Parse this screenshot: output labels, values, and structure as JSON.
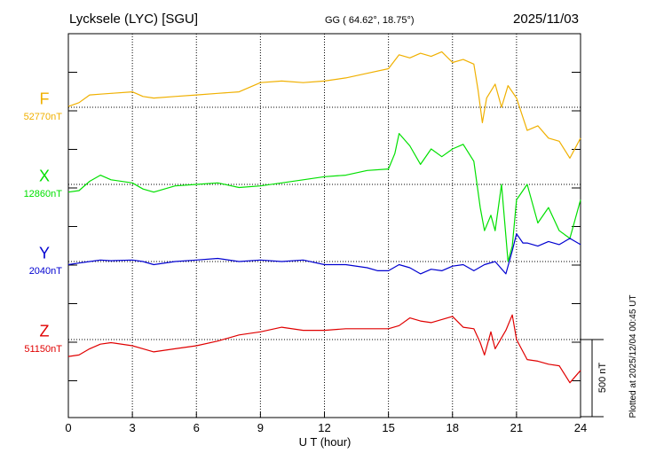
{
  "chart_data": {
    "type": "line",
    "title": "Lycksele (LYC)  [SGU]",
    "subtitle": "GG ( 64.62°,  18.75°)",
    "date": "2025/11/03",
    "xlabel": "U T (hour)",
    "xlim": [
      0,
      24
    ],
    "xticks": [
      "0",
      "3",
      "6",
      "9",
      "12",
      "15",
      "18",
      "21",
      "24"
    ],
    "grid": true,
    "scale_label": "500 nT",
    "scale_nT": 500,
    "plotted_note": "Plotted at 2025/12/04 00:45 UT",
    "series": [
      {
        "name": "F",
        "baseline_label": "52770nT",
        "baseline": 52770,
        "color": "#f0b000",
        "x": [
          0,
          0.5,
          1,
          1.5,
          2,
          3,
          3.5,
          4,
          5,
          6,
          7,
          8,
          9,
          10,
          11,
          12,
          13,
          14,
          15,
          15.5,
          16,
          16.5,
          17,
          17.5,
          18,
          18.5,
          19,
          19.2,
          19.4,
          19.6,
          20,
          20.3,
          20.6,
          21,
          21.5,
          22,
          22.5,
          23,
          23.5,
          24
        ],
        "y": [
          5,
          30,
          80,
          85,
          90,
          100,
          70,
          60,
          70,
          80,
          90,
          100,
          160,
          170,
          160,
          170,
          190,
          220,
          250,
          340,
          320,
          350,
          330,
          360,
          290,
          310,
          280,
          110,
          -100,
          60,
          150,
          0,
          140,
          60,
          -150,
          -120,
          -200,
          -220,
          -330,
          -200
        ]
      },
      {
        "name": "X",
        "baseline_label": "12860nT",
        "baseline": 12860,
        "color": "#00e000",
        "x": [
          0,
          0.5,
          1,
          1.5,
          2,
          3,
          3.5,
          4,
          5,
          6,
          7,
          8,
          9,
          10,
          11,
          12,
          13,
          14,
          15,
          15.3,
          15.5,
          16,
          16.5,
          17,
          17.5,
          18,
          18.5,
          19,
          19.3,
          19.5,
          19.8,
          20,
          20.3,
          20.6,
          20.8,
          21,
          21.5,
          22,
          22.5,
          23,
          23.5,
          24
        ],
        "y": [
          -50,
          -40,
          20,
          60,
          30,
          10,
          -30,
          -50,
          -10,
          0,
          10,
          -20,
          -10,
          10,
          30,
          50,
          60,
          90,
          100,
          200,
          330,
          250,
          130,
          230,
          180,
          230,
          260,
          150,
          -150,
          -300,
          -200,
          -300,
          0,
          -500,
          -400,
          -100,
          0,
          -250,
          -150,
          -300,
          -350,
          -100
        ]
      },
      {
        "name": "Y",
        "baseline_label": "2040nT",
        "baseline": 2040,
        "color": "#0000d0",
        "x": [
          0,
          0.5,
          1,
          1.5,
          2,
          3,
          3.5,
          4,
          5,
          6,
          7,
          8,
          9,
          10,
          11,
          12,
          13,
          14,
          14.5,
          15,
          15.5,
          16,
          16.5,
          17,
          17.5,
          18,
          18.5,
          19,
          19.5,
          20,
          20.5,
          20.8,
          21,
          21.3,
          21.5,
          22,
          22.5,
          23,
          23.5,
          24
        ],
        "y": [
          -20,
          -10,
          0,
          10,
          5,
          10,
          0,
          -20,
          0,
          10,
          20,
          0,
          10,
          0,
          10,
          -20,
          -20,
          -40,
          -60,
          -60,
          -20,
          -40,
          -80,
          -50,
          -60,
          -30,
          -20,
          -60,
          -20,
          0,
          -80,
          70,
          180,
          120,
          120,
          100,
          130,
          110,
          150,
          110
        ]
      },
      {
        "name": "Z",
        "baseline_label": "51150nT",
        "baseline": 51150,
        "color": "#e00000",
        "x": [
          0,
          0.5,
          1,
          1.5,
          2,
          3,
          3.5,
          4,
          5,
          6,
          7,
          8,
          9,
          10,
          11,
          12,
          13,
          14,
          15,
          15.5,
          16,
          16.5,
          17,
          17.5,
          18,
          18.5,
          19,
          19.3,
          19.5,
          19.8,
          20,
          20.5,
          20.8,
          21,
          21.5,
          22,
          22.5,
          23,
          23.5,
          24
        ],
        "y": [
          -110,
          -100,
          -60,
          -30,
          -20,
          -40,
          -60,
          -80,
          -60,
          -40,
          -10,
          30,
          50,
          80,
          60,
          60,
          70,
          70,
          70,
          90,
          140,
          120,
          110,
          130,
          150,
          80,
          70,
          -20,
          -100,
          50,
          -60,
          60,
          160,
          0,
          -130,
          -140,
          -160,
          -170,
          -280,
          -200
        ]
      }
    ]
  }
}
